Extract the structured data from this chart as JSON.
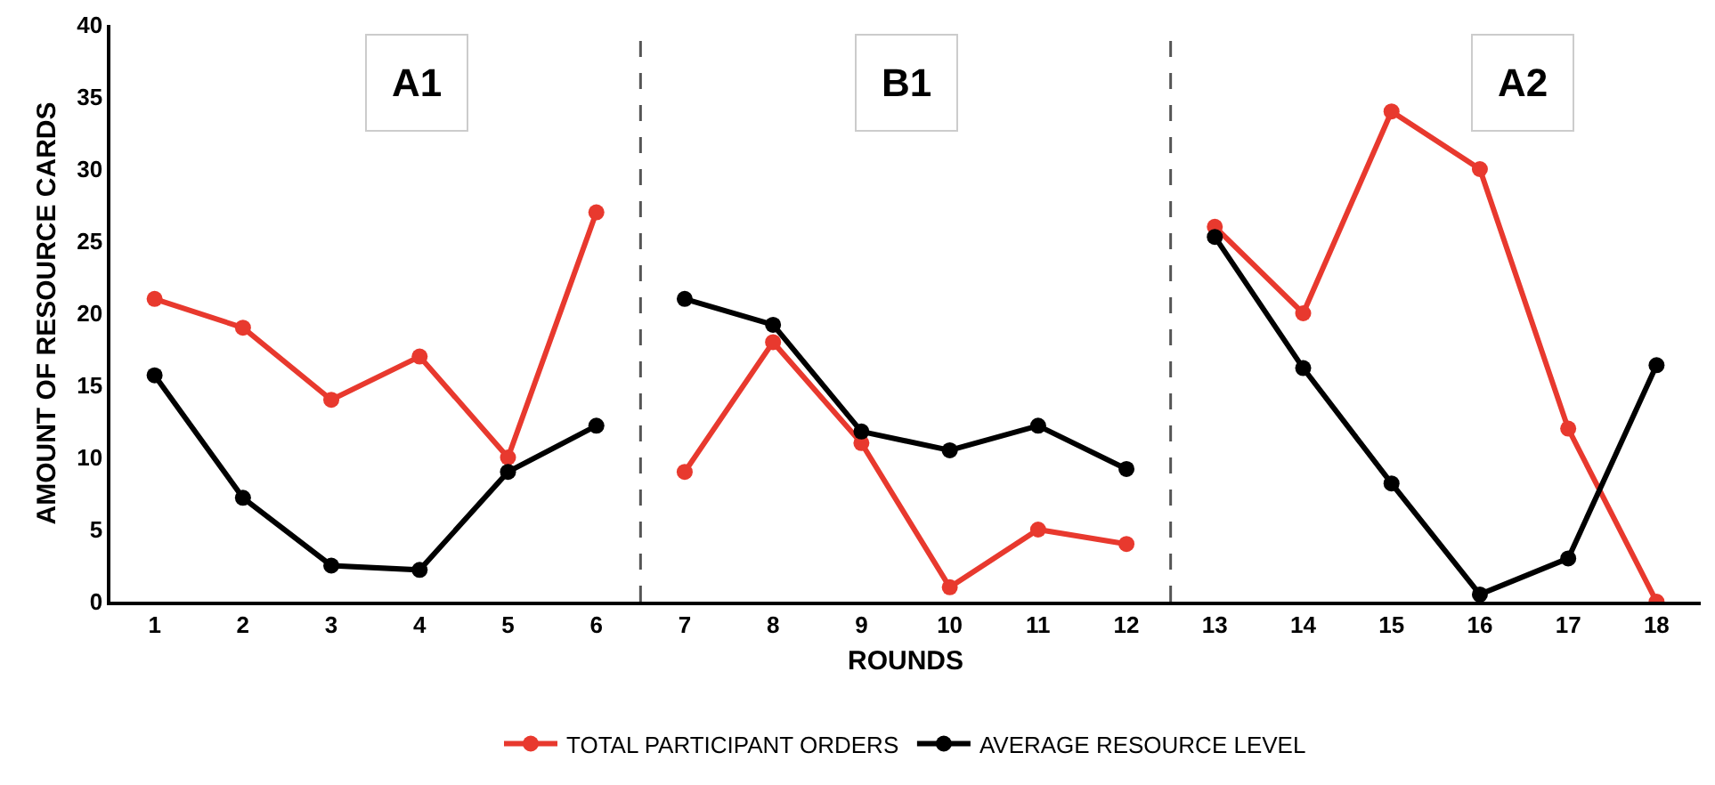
{
  "chart_data": {
    "type": "line",
    "xlabel": "ROUNDS",
    "ylabel": "AMOUNT OF RESOURCE CARDS",
    "x": [
      1,
      2,
      3,
      4,
      5,
      6,
      7,
      8,
      9,
      10,
      11,
      12,
      13,
      14,
      15,
      16,
      17,
      18
    ],
    "xlim": [
      0.5,
      18.5
    ],
    "xticks": [
      1,
      2,
      3,
      4,
      5,
      6,
      7,
      8,
      9,
      10,
      11,
      12,
      13,
      14,
      15,
      16,
      17,
      18
    ],
    "ylim": [
      0,
      40
    ],
    "yticks": [
      0,
      5,
      10,
      15,
      20,
      25,
      30,
      35,
      40
    ],
    "series": [
      {
        "name": "TOTAL PARTICIPANT ORDERS",
        "color": "#e8392e",
        "values": [
          21,
          19,
          14,
          17,
          10,
          27,
          9,
          18,
          11,
          1,
          5,
          4,
          26,
          20,
          34,
          30,
          12,
          0
        ]
      },
      {
        "name": "AVERAGE RESOURCE LEVEL",
        "color": "#000000",
        "values": [
          15.7,
          7.2,
          2.5,
          2.2,
          9,
          12.2,
          21,
          19.2,
          11.8,
          10.5,
          12.2,
          9.2,
          25.3,
          16.2,
          8.2,
          0.5,
          3,
          16.4
        ]
      }
    ],
    "ref_lines": [
      {
        "axis": "x",
        "value": 6.5,
        "color": "#555555",
        "line_style": "dashed"
      },
      {
        "axis": "x",
        "value": 12.5,
        "color": "#555555",
        "line_style": "dashed"
      }
    ],
    "annotations": [
      "A1",
      "B1",
      "A2"
    ],
    "grid": false,
    "legend": "bottom",
    "marker": "circle",
    "line_style": "solid"
  }
}
